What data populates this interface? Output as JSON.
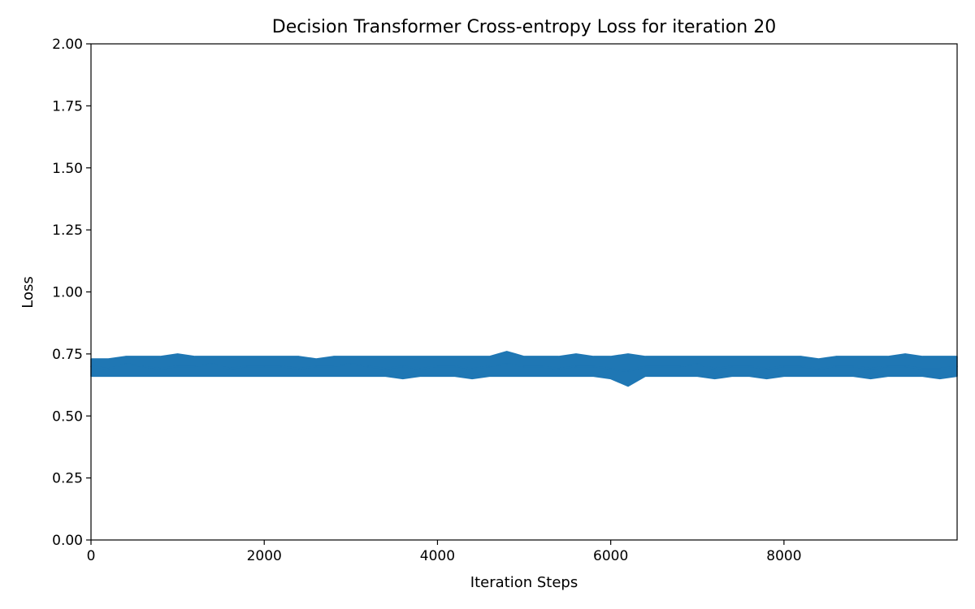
{
  "chart_data": {
    "type": "line",
    "title": "Decision Transformer Cross-entropy Loss for iteration 20",
    "xlabel": "Iteration Steps",
    "ylabel": "Loss",
    "xlim": [
      0,
      9999
    ],
    "ylim": [
      0,
      2.0
    ],
    "x_ticks": [
      0,
      2000,
      4000,
      6000,
      8000
    ],
    "x_tick_labels": [
      "0",
      "2000",
      "4000",
      "6000",
      "8000"
    ],
    "y_ticks": [
      0,
      0.25,
      0.5,
      0.75,
      1.0,
      1.25,
      1.5,
      1.75,
      2.0
    ],
    "y_tick_labels": [
      "0.00",
      "0.25",
      "0.50",
      "0.75",
      "1.00",
      "1.25",
      "1.50",
      "1.75",
      "2.00"
    ],
    "grid": false,
    "series": [
      {
        "color": "#1f77b4",
        "x": [
          0,
          200,
          400,
          600,
          800,
          1000,
          1200,
          1400,
          1600,
          1800,
          2000,
          2200,
          2400,
          2600,
          2800,
          3000,
          3200,
          3400,
          3600,
          3800,
          4000,
          4200,
          4400,
          4600,
          4800,
          5000,
          5200,
          5400,
          5600,
          5800,
          6000,
          6200,
          6400,
          6600,
          6800,
          7000,
          7200,
          7400,
          7600,
          7800,
          8000,
          8200,
          8400,
          8600,
          8800,
          9000,
          9200,
          9400,
          9600,
          9800,
          9999
        ],
        "values": [
          0.7,
          0.69,
          0.71,
          0.7,
          0.69,
          0.7,
          0.7,
          0.71,
          0.69,
          0.7,
          0.7,
          0.7,
          0.69,
          0.7,
          0.7,
          0.71,
          0.7,
          0.69,
          0.7,
          0.69,
          0.7,
          0.7,
          0.69,
          0.7,
          0.71,
          0.7,
          0.7,
          0.69,
          0.7,
          0.7,
          0.69,
          0.68,
          0.7,
          0.7,
          0.7,
          0.71,
          0.69,
          0.7,
          0.7,
          0.69,
          0.7,
          0.7,
          0.69,
          0.7,
          0.7,
          0.69,
          0.7,
          0.7,
          0.69,
          0.69,
          0.7
        ],
        "band_low": [
          0.66,
          0.66,
          0.66,
          0.66,
          0.66,
          0.66,
          0.66,
          0.66,
          0.66,
          0.66,
          0.66,
          0.66,
          0.66,
          0.66,
          0.66,
          0.66,
          0.66,
          0.66,
          0.65,
          0.66,
          0.66,
          0.66,
          0.65,
          0.66,
          0.66,
          0.66,
          0.66,
          0.66,
          0.66,
          0.66,
          0.65,
          0.62,
          0.66,
          0.66,
          0.66,
          0.66,
          0.65,
          0.66,
          0.66,
          0.65,
          0.66,
          0.66,
          0.66,
          0.66,
          0.66,
          0.65,
          0.66,
          0.66,
          0.66,
          0.65,
          0.66
        ],
        "band_high": [
          0.73,
          0.73,
          0.74,
          0.74,
          0.74,
          0.75,
          0.74,
          0.74,
          0.74,
          0.74,
          0.74,
          0.74,
          0.74,
          0.73,
          0.74,
          0.74,
          0.74,
          0.74,
          0.74,
          0.74,
          0.74,
          0.74,
          0.74,
          0.74,
          0.76,
          0.74,
          0.74,
          0.74,
          0.75,
          0.74,
          0.74,
          0.75,
          0.74,
          0.74,
          0.74,
          0.74,
          0.74,
          0.74,
          0.74,
          0.74,
          0.74,
          0.74,
          0.73,
          0.74,
          0.74,
          0.74,
          0.74,
          0.75,
          0.74,
          0.74,
          0.74
        ]
      }
    ]
  }
}
